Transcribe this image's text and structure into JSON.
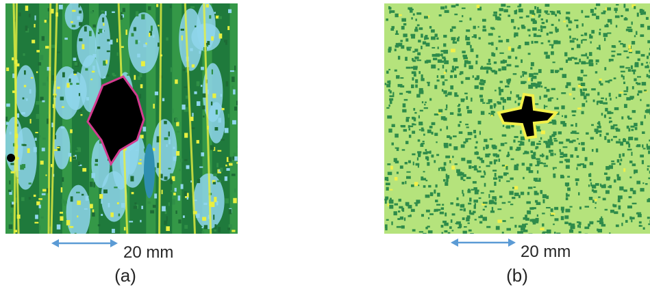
{
  "panels": [
    {
      "scale_label": "20 mm",
      "caption": "(a)"
    },
    {
      "scale_label": "20 mm",
      "caption": "(b)"
    }
  ]
}
